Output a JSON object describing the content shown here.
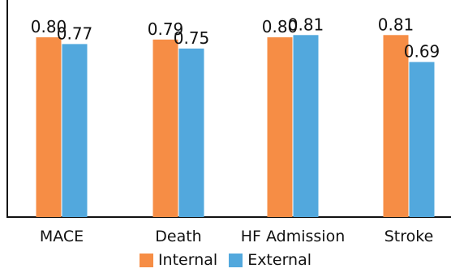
{
  "chart_data": {
    "type": "bar",
    "categories": [
      "MACE",
      "Death",
      "HF Admission",
      "Stroke"
    ],
    "series": [
      {
        "name": "Internal",
        "values": [
          0.8,
          0.79,
          0.8,
          0.81
        ],
        "labels": [
          "0.80",
          "0.79",
          "0.80",
          "0.81"
        ],
        "color": "#F68D45"
      },
      {
        "name": "External",
        "values": [
          0.77,
          0.75,
          0.81,
          0.69
        ],
        "labels": [
          "0.77",
          "0.75",
          "0.81",
          "0.69"
        ],
        "color": "#52A8DD"
      }
    ],
    "title": "",
    "xlabel": "",
    "ylabel": "",
    "ylim": [
      0,
      0.93
    ],
    "grid": false,
    "legend_position": "bottom-center"
  }
}
